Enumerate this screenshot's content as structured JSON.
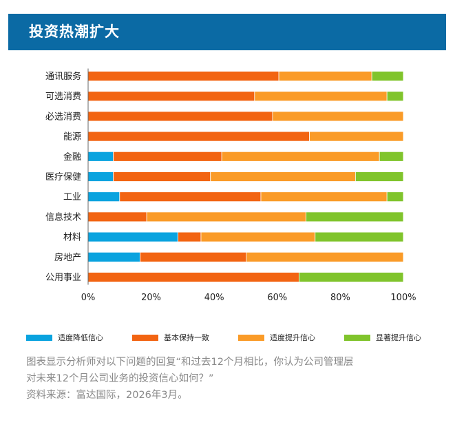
{
  "header": {
    "title": "投资热潮扩大"
  },
  "colors": {
    "header_bg": "#0b6aa4",
    "series": [
      "#0aa3df",
      "#f26412",
      "#fa9b28",
      "#80c42c"
    ]
  },
  "chart_data": {
    "type": "bar",
    "orientation": "horizontal",
    "stacked": true,
    "categories": [
      "通讯服务",
      "可选消费",
      "必选消费",
      "能源",
      "金融",
      "医疗保健",
      "工业",
      "信息技术",
      "材料",
      "房地产",
      "公用事业"
    ],
    "series": [
      {
        "name": "适度降低信心",
        "color": "#0aa3df",
        "values": [
          0,
          0,
          0,
          0,
          8,
          8,
          10,
          0,
          28.5,
          16.5,
          0
        ]
      },
      {
        "name": "基本保持一致",
        "color": "#f26412",
        "values": [
          60.5,
          52.8,
          58.5,
          70.2,
          34.4,
          30.8,
          44.8,
          18.6,
          7.3,
          33.7,
          66.9
        ]
      },
      {
        "name": "适度提升信心",
        "color": "#fa9b28",
        "values": [
          29.5,
          42,
          41.5,
          29.8,
          50,
          46,
          40,
          50.5,
          36.2,
          49.8,
          0
        ]
      },
      {
        "name": "显著提升信心",
        "color": "#80c42c",
        "values": [
          10,
          5.2,
          0,
          0,
          7.6,
          15.2,
          5.2,
          30.9,
          28,
          0,
          33.1
        ]
      }
    ],
    "xlim": [
      0,
      100
    ],
    "xticks": [
      "0%",
      "20%",
      "40%",
      "60%",
      "80%",
      "100%"
    ],
    "legend_position": "bottom",
    "grid": false
  },
  "note": {
    "line1": "图表显示分析师对以下问题的回复“和过去12个月相比，你认为公司管理层",
    "line2": "对未来12个月公司业务的投资信心如何？”",
    "line3": "资料来源：富达国际，2026年3月。"
  }
}
